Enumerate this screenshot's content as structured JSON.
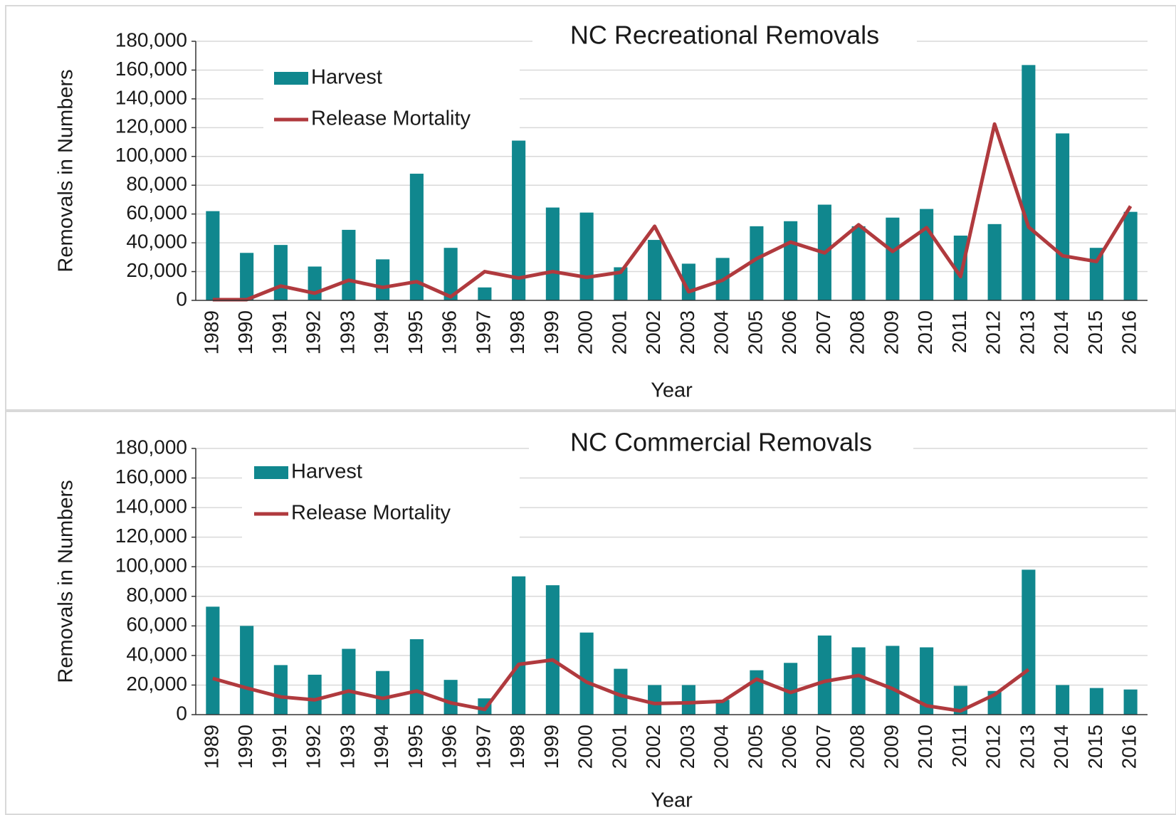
{
  "chart_data": [
    {
      "type": "bar_line",
      "title": "NC Recreational Removals",
      "x_label": "Year",
      "y_label": "Removals in Numbers",
      "categories": [
        "1989",
        "1990",
        "1991",
        "1992",
        "1993",
        "1994",
        "1995",
        "1996",
        "1997",
        "1998",
        "1999",
        "2000",
        "2001",
        "2002",
        "2003",
        "2004",
        "2005",
        "2006",
        "2007",
        "2008",
        "2009",
        "2010",
        "2011",
        "2012",
        "2013",
        "2014",
        "2015",
        "2016"
      ],
      "series": [
        {
          "name": "Harvest",
          "kind": "bar",
          "color": "#10878e",
          "values": [
            62000,
            33000,
            38500,
            23500,
            49000,
            28500,
            88000,
            36500,
            9000,
            111000,
            64500,
            61000,
            23000,
            42000,
            25500,
            29500,
            51500,
            55000,
            66500,
            51500,
            57500,
            63500,
            45000,
            53000,
            163500,
            116000,
            36500,
            61500
          ]
        },
        {
          "name": "Release Mortality",
          "kind": "line",
          "color": "#b03a3e",
          "values": [
            500,
            500,
            10000,
            5000,
            14000,
            9000,
            13000,
            2500,
            20000,
            15500,
            20000,
            16000,
            19500,
            51500,
            6000,
            14000,
            29000,
            40500,
            33000,
            52500,
            34000,
            50500,
            16500,
            122500,
            51000,
            31000,
            27000,
            65500
          ]
        }
      ],
      "ylim": [
        0,
        180000
      ],
      "yticks": [
        0,
        {
          "value": 20000,
          "label": "20,000"
        },
        {
          "value": 40000,
          "label": "40,000"
        },
        {
          "value": 60000,
          "label": "60,000"
        },
        {
          "value": 80000,
          "label": "80,000"
        },
        {
          "value": 100000,
          "label": "100,000"
        },
        {
          "value": 120000,
          "label": "120,000"
        },
        {
          "value": 140000,
          "label": "140,000"
        },
        {
          "value": 160000,
          "label": "160,000"
        },
        {
          "value": 180000,
          "label": "180,000"
        }
      ],
      "grid": true
    },
    {
      "type": "bar_line",
      "title": "NC Commercial Removals",
      "x_label": "Year",
      "y_label": "Removals in Numbers",
      "categories": [
        "1989",
        "1990",
        "1991",
        "1992",
        "1993",
        "1994",
        "1995",
        "1996",
        "1997",
        "1998",
        "1999",
        "2000",
        "2001",
        "2002",
        "2003",
        "2004",
        "2005",
        "2006",
        "2007",
        "2008",
        "2009",
        "2010",
        "2011",
        "2012",
        "2013",
        "2014",
        "2015",
        "2016"
      ],
      "series": [
        {
          "name": "Harvest",
          "kind": "bar",
          "color": "#10878e",
          "values": [
            73000,
            60000,
            33500,
            27000,
            44500,
            29500,
            51000,
            23500,
            11000,
            93500,
            87500,
            55500,
            31000,
            20000,
            20000,
            10000,
            30000,
            35000,
            53500,
            45500,
            46500,
            45500,
            19500,
            16000,
            98000,
            20000,
            18000,
            17000
          ]
        },
        {
          "name": "Release Mortality",
          "kind": "line",
          "color": "#b03a3e",
          "values": [
            24500,
            18000,
            12000,
            10000,
            16000,
            11000,
            16000,
            8000,
            3500,
            34000,
            37000,
            22000,
            13000,
            7500,
            8000,
            9000,
            24000,
            15000,
            22500,
            26500,
            17500,
            6000,
            2500,
            13500,
            30500,
            null,
            null,
            null
          ]
        }
      ],
      "ylim": [
        0,
        180000
      ],
      "yticks": [
        0,
        {
          "value": 20000,
          "label": "20,000"
        },
        {
          "value": 40000,
          "label": "40,000"
        },
        {
          "value": 60000,
          "label": "60,000"
        },
        {
          "value": 80000,
          "label": "80,000"
        },
        {
          "value": 100000,
          "label": "100,000"
        },
        {
          "value": 120000,
          "label": "120,000"
        },
        {
          "value": 140000,
          "label": "140,000"
        },
        {
          "value": 160000,
          "label": "160,000"
        },
        {
          "value": 180000,
          "label": "180,000"
        }
      ],
      "grid": true
    }
  ]
}
